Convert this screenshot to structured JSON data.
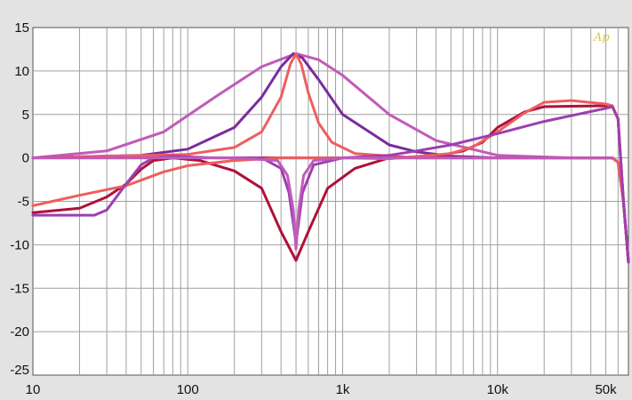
{
  "chart_data": {
    "type": "line",
    "title": "",
    "xlabel": "",
    "ylabel": "",
    "x_scale": "log",
    "xlim": [
      10,
      70000
    ],
    "ylim": [
      -25,
      15
    ],
    "grid": true,
    "legend": "none",
    "x_tick_labels": [
      {
        "value": 10,
        "label": "10"
      },
      {
        "value": 100,
        "label": "100"
      },
      {
        "value": 1000,
        "label": "1k"
      },
      {
        "value": 10000,
        "label": "10k"
      },
      {
        "value": 50000,
        "label": "50k"
      }
    ],
    "y_ticks": [
      15,
      10,
      5,
      0,
      -5,
      -10,
      -15,
      -20,
      -25
    ],
    "logo_text": "Ap",
    "series": [
      {
        "color": "#c05bb8",
        "points": [
          [
            10,
            0
          ],
          [
            30,
            0.8
          ],
          [
            70,
            3
          ],
          [
            150,
            7
          ],
          [
            300,
            10.5
          ],
          [
            500,
            12
          ],
          [
            700,
            11.3
          ],
          [
            1000,
            9.5
          ],
          [
            2000,
            5
          ],
          [
            4000,
            2
          ],
          [
            10000,
            0.3
          ],
          [
            30000,
            0
          ],
          [
            55000,
            0
          ],
          [
            60000,
            -0.5
          ],
          [
            65000,
            -5
          ],
          [
            70000,
            -12
          ]
        ]
      },
      {
        "color": "#7a2b9e",
        "points": [
          [
            10,
            0
          ],
          [
            50,
            0.3
          ],
          [
            100,
            1
          ],
          [
            200,
            3.5
          ],
          [
            300,
            7
          ],
          [
            400,
            10.5
          ],
          [
            480,
            12
          ],
          [
            550,
            11.5
          ],
          [
            700,
            9
          ],
          [
            1000,
            5
          ],
          [
            2000,
            1.5
          ],
          [
            3000,
            0.7
          ],
          [
            5000,
            0.2
          ],
          [
            10000,
            0
          ],
          [
            55000,
            0
          ],
          [
            60000,
            -0.5
          ],
          [
            65000,
            -5
          ],
          [
            70000,
            -12
          ]
        ]
      },
      {
        "color": "#ee5e5e",
        "points": [
          [
            10,
            0
          ],
          [
            100,
            0.4
          ],
          [
            200,
            1.2
          ],
          [
            300,
            3
          ],
          [
            400,
            7
          ],
          [
            460,
            10.8
          ],
          [
            500,
            12
          ],
          [
            540,
            10.8
          ],
          [
            600,
            7.5
          ],
          [
            700,
            4
          ],
          [
            850,
            1.8
          ],
          [
            1200,
            0.5
          ],
          [
            3000,
            0
          ],
          [
            55000,
            0
          ],
          [
            60000,
            -0.5
          ],
          [
            65000,
            -5
          ],
          [
            70000,
            -12
          ]
        ]
      },
      {
        "color": "#b0103a",
        "points": [
          [
            10,
            0
          ],
          [
            55000,
            0
          ]
        ]
      },
      {
        "color": "#b0103a",
        "points": [
          [
            10,
            -6.3
          ],
          [
            20,
            -5.8
          ],
          [
            30,
            -4.5
          ],
          [
            40,
            -3
          ],
          [
            50,
            -1.3
          ],
          [
            60,
            -0.3
          ],
          [
            80,
            0
          ],
          [
            120,
            -0.3
          ],
          [
            200,
            -1.5
          ],
          [
            300,
            -3.5
          ],
          [
            400,
            -8.5
          ],
          [
            500,
            -11.8
          ],
          [
            600,
            -8.5
          ],
          [
            800,
            -3.5
          ],
          [
            1200,
            -1.2
          ],
          [
            2000,
            0
          ],
          [
            4000,
            0.2
          ],
          [
            6000,
            0.8
          ],
          [
            8000,
            1.8
          ],
          [
            10000,
            3.5
          ],
          [
            15000,
            5.3
          ],
          [
            20000,
            5.9
          ],
          [
            50000,
            6
          ],
          [
            55000,
            6
          ],
          [
            60000,
            4.5
          ],
          [
            65000,
            -5
          ],
          [
            70000,
            -12
          ]
        ]
      },
      {
        "color": "#ee5e5e",
        "points": [
          [
            10,
            -5.5
          ],
          [
            20,
            -4.3
          ],
          [
            40,
            -3.2
          ],
          [
            70,
            -1.6
          ],
          [
            100,
            -0.9
          ],
          [
            200,
            -0.3
          ],
          [
            400,
            0
          ],
          [
            1000,
            0
          ],
          [
            2000,
            -0.1
          ],
          [
            5000,
            0.5
          ],
          [
            7000,
            1.3
          ],
          [
            10000,
            3
          ],
          [
            15000,
            5.2
          ],
          [
            20000,
            6.4
          ],
          [
            30000,
            6.6
          ],
          [
            50000,
            6.2
          ],
          [
            55000,
            6
          ],
          [
            60000,
            4.5
          ],
          [
            65000,
            -5
          ],
          [
            70000,
            -12
          ]
        ]
      },
      {
        "color": "#9e3eb0",
        "points": [
          [
            10,
            -6.6
          ],
          [
            25,
            -6.6
          ],
          [
            30,
            -6
          ],
          [
            40,
            -3
          ],
          [
            50,
            -0.8
          ],
          [
            60,
            0
          ],
          [
            80,
            0.2
          ],
          [
            150,
            0
          ],
          [
            300,
            0
          ],
          [
            400,
            -1.2
          ],
          [
            450,
            -4
          ],
          [
            500,
            -9.8
          ],
          [
            550,
            -4
          ],
          [
            650,
            -0.8
          ],
          [
            1000,
            0
          ],
          [
            2000,
            0.3
          ],
          [
            3000,
            0.8
          ],
          [
            5000,
            1.5
          ],
          [
            10000,
            2.8
          ],
          [
            20000,
            4.2
          ],
          [
            50000,
            5.7
          ],
          [
            55000,
            5.9
          ],
          [
            60000,
            4.5
          ],
          [
            65000,
            -5
          ],
          [
            70000,
            -12
          ]
        ]
      },
      {
        "color": "#c05bb8",
        "points": [
          [
            10,
            0
          ],
          [
            200,
            0
          ],
          [
            380,
            -0.3
          ],
          [
            440,
            -2
          ],
          [
            480,
            -6
          ],
          [
            500,
            -10.5
          ],
          [
            520,
            -6
          ],
          [
            560,
            -2
          ],
          [
            650,
            -0.3
          ],
          [
            1000,
            0
          ],
          [
            55000,
            0
          ]
        ]
      }
    ]
  }
}
